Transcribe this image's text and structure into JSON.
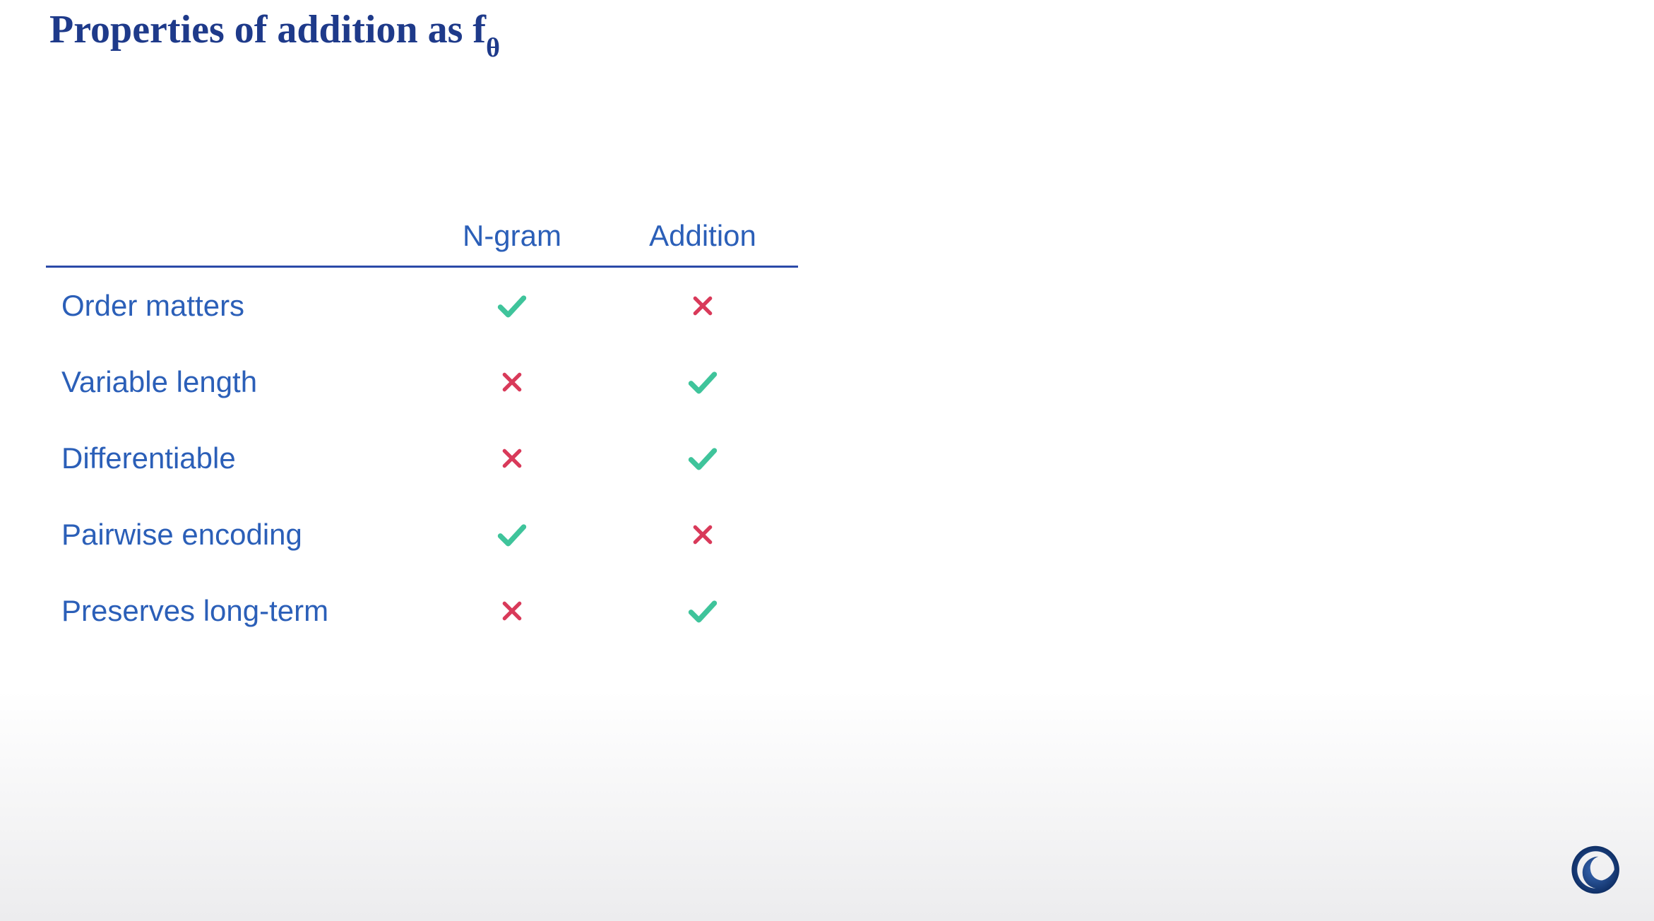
{
  "title": {
    "main": "Properties of addition as f",
    "subscript": "θ",
    "color": "#1e3a8a",
    "fontsize": 56
  },
  "table": {
    "type": "table",
    "header_color": "#2b5fb8",
    "header_fontsize": 42,
    "row_label_color": "#2b5fb8",
    "row_label_fontsize": 42,
    "border_color": "#2b4aa8",
    "columns": [
      "N-gram",
      "Addition"
    ],
    "rows": [
      {
        "label": "Order matters",
        "values": [
          "check",
          "x"
        ]
      },
      {
        "label": "Variable length",
        "values": [
          "x",
          "check"
        ]
      },
      {
        "label": "Differentiable",
        "values": [
          "x",
          "check"
        ]
      },
      {
        "label": "Pairwise encoding",
        "values": [
          "check",
          "x"
        ]
      },
      {
        "label": "Preserves long-term",
        "values": [
          "x",
          "check"
        ]
      }
    ],
    "check_color": "#3fc49b",
    "x_color": "#d93a5a"
  },
  "logo": {
    "name": "swirl-logo",
    "color": "#1e4a8f"
  },
  "background": {
    "top_color": "#ffffff",
    "bottom_color": "#ececee"
  }
}
